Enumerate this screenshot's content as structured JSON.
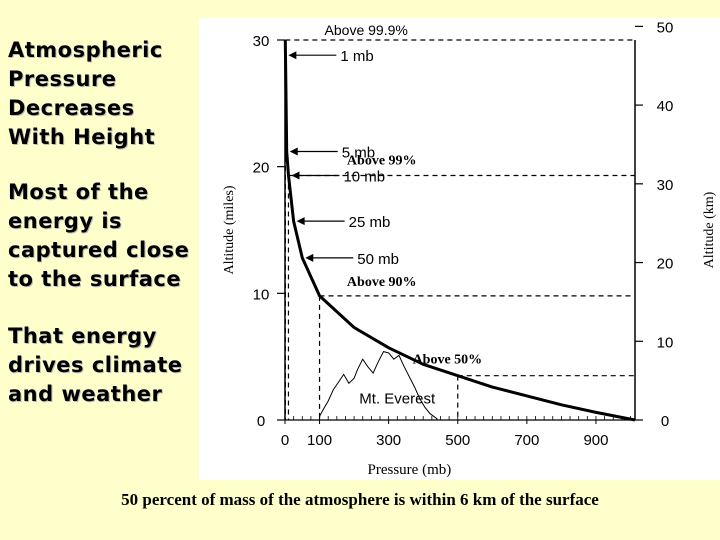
{
  "slide": {
    "title": "Atmospheric Pressure Decreases With Height",
    "point1": "Most of the energy is captured close to the surface",
    "point2": "That energy drives climate and weather",
    "caption": "50 percent of mass of the atmosphere is within 6 km of the surface"
  },
  "chart_data": {
    "type": "line",
    "xlabel": "Pressure (mb)",
    "ylabel_left": "Altitude (miles)",
    "ylabel_right": "Altitude (km)",
    "x_ticks": [
      "0",
      "100",
      "300",
      "500",
      "700",
      "900"
    ],
    "y_ticks_left": [
      "0",
      "10",
      "20",
      "30"
    ],
    "y_ticks_right": [
      "0",
      "10",
      "20",
      "30",
      "40",
      "50"
    ],
    "xlim": [
      0,
      1013
    ],
    "ylim_miles": [
      0,
      30
    ],
    "series": [
      {
        "x": [
          1,
          5,
          10,
          25,
          50,
          100,
          200,
          300,
          400,
          500,
          600,
          700,
          800,
          900,
          1013
        ],
        "y": [
          30,
          21.2,
          19.3,
          15.7,
          12.8,
          9.8,
          7.3,
          5.7,
          4.4,
          3.5,
          2.6,
          1.9,
          1.2,
          0.6,
          0
        ]
      }
    ],
    "pressure_labels": [
      {
        "text": "1 mb",
        "p": 1,
        "h": 28.8
      },
      {
        "text": "5 mb",
        "p": 5,
        "h": 21.2
      },
      {
        "text": "10 mb",
        "p": 10,
        "h": 19.3
      },
      {
        "text": "25 mb",
        "p": 25,
        "h": 15.7
      },
      {
        "text": "50 mb",
        "p": 50,
        "h": 12.8
      }
    ],
    "mass_levels": [
      {
        "text": "Above 99.9%",
        "p": 1,
        "h": 30
      },
      {
        "text": "Above 99%",
        "p": 10,
        "h": 19.3
      },
      {
        "text": "Above 90%",
        "p": 100,
        "h": 9.8
      },
      {
        "text": "Above 50%",
        "p": 500,
        "h": 3.5
      }
    ],
    "annotations": [
      "Mt. Everest"
    ],
    "mountain": {
      "x": [
        100,
        110,
        125,
        140,
        155,
        170,
        185,
        200,
        210,
        225,
        240,
        255,
        270,
        285,
        300,
        315,
        330,
        345,
        360,
        375,
        390,
        405,
        420,
        440
      ],
      "y": [
        0.3,
        0.8,
        1.5,
        2.4,
        3.0,
        3.6,
        2.9,
        3.3,
        4.0,
        4.8,
        4.2,
        3.7,
        4.6,
        5.4,
        5.3,
        4.8,
        5.1,
        4.2,
        3.4,
        2.6,
        1.7,
        1.0,
        0.5,
        0.1
      ]
    }
  },
  "colors": {
    "background": "#ffffcc",
    "panel": "#ffffff",
    "ink": "#000000"
  }
}
